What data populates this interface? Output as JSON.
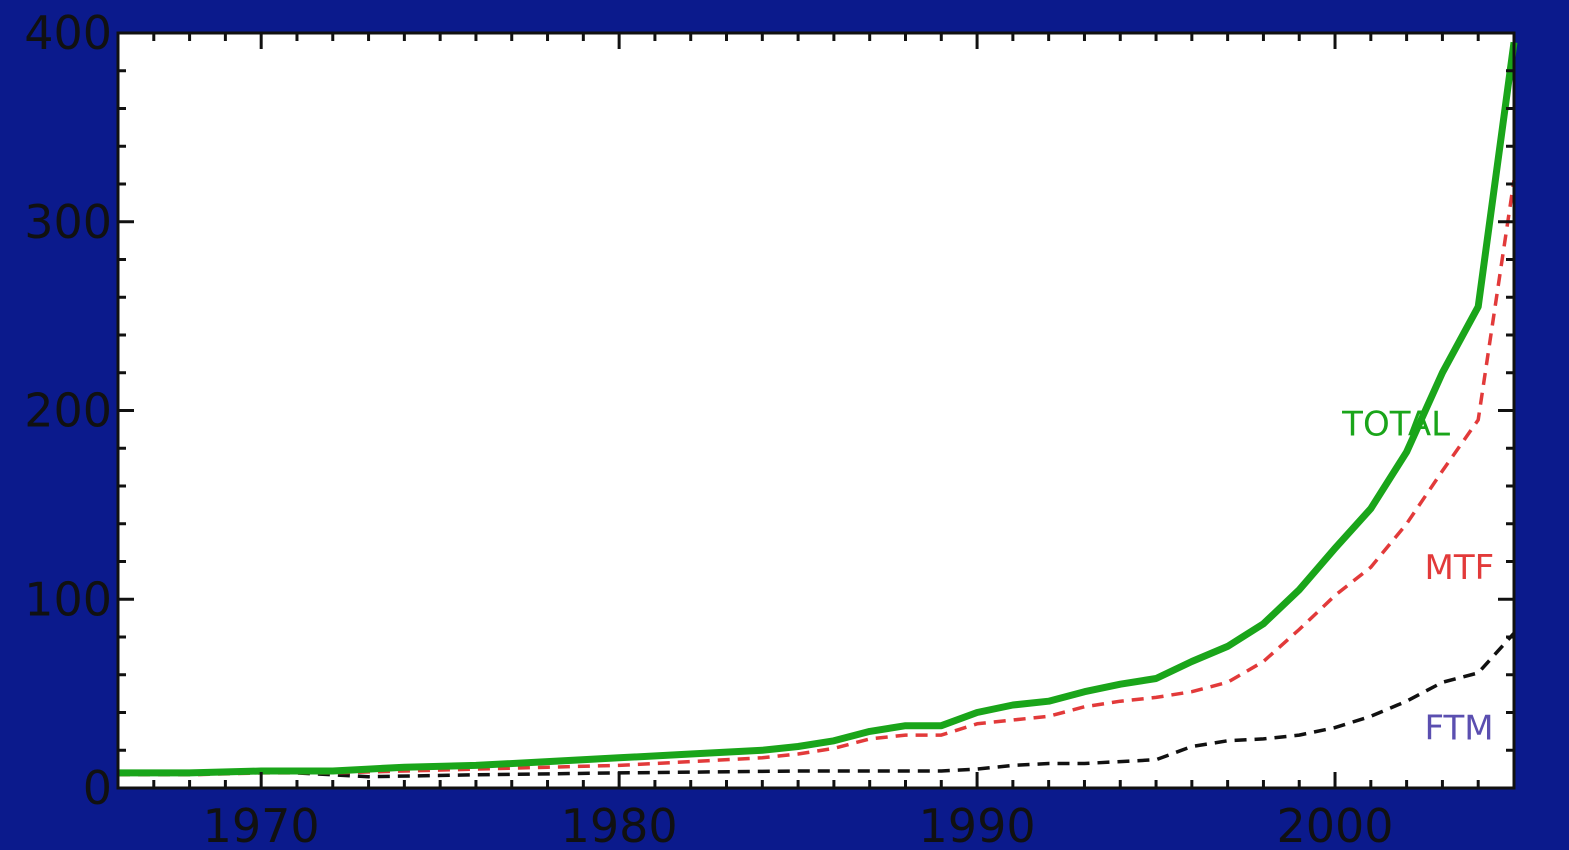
{
  "colors": {
    "background": "#0b1a8c",
    "plot_background": "#ffffff",
    "axis": "#111111"
  },
  "chart_data": {
    "type": "line",
    "title": "",
    "xlabel": "",
    "ylabel": "",
    "xlim": [
      1966,
      2005
    ],
    "ylim": [
      0,
      400
    ],
    "grid": false,
    "x_ticks": [
      1970,
      1980,
      1990,
      2000
    ],
    "x_tick_labels": [
      "1970",
      "1980",
      "1990",
      "2000"
    ],
    "y_ticks": [
      0,
      100,
      200,
      300,
      400
    ],
    "y_tick_labels": [
      "0",
      "100",
      "200",
      "300",
      "400"
    ],
    "series": [
      {
        "name": "TOTAL",
        "color": "#1aa51a",
        "style": "solid",
        "x": [
          1966,
          1968,
          1970,
          1972,
          1973,
          1974,
          1976,
          1978,
          1980,
          1982,
          1984,
          1985,
          1986,
          1987,
          1988,
          1989,
          1990,
          1991,
          1992,
          1993,
          1994,
          1995,
          1996,
          1997,
          1998,
          1999,
          2000,
          2001,
          2002,
          2003,
          2004,
          2005
        ],
        "values": [
          8,
          8,
          9,
          9,
          10,
          11,
          12,
          14,
          16,
          18,
          20,
          22,
          25,
          30,
          33,
          33,
          40,
          44,
          46,
          51,
          55,
          58,
          67,
          75,
          87,
          105,
          127,
          148,
          178,
          220,
          255,
          395
        ]
      },
      {
        "name": "MTF",
        "color": "#e23a3a",
        "style": "dashed",
        "x": [
          1966,
          1968,
          1970,
          1972,
          1974,
          1976,
          1978,
          1980,
          1982,
          1984,
          1985,
          1986,
          1987,
          1988,
          1989,
          1990,
          1991,
          1992,
          1993,
          1994,
          1995,
          1996,
          1997,
          1998,
          1999,
          2000,
          2001,
          2002,
          2003,
          2004,
          2005
        ],
        "values": [
          7,
          7,
          8,
          8,
          9,
          10,
          11,
          12,
          14,
          16,
          18,
          21,
          26,
          28,
          28,
          34,
          36,
          38,
          43,
          46,
          48,
          51,
          56,
          67,
          84,
          102,
          117,
          140,
          168,
          195,
          322
        ]
      },
      {
        "name": "FTM",
        "color": "#111111",
        "style": "dashed",
        "x": [
          1966,
          1970,
          1973,
          1976,
          1980,
          1985,
          1989,
          1990,
          1991,
          1992,
          1993,
          1994,
          1995,
          1996,
          1997,
          1998,
          1999,
          2000,
          2001,
          2002,
          2003,
          2004,
          2005
        ],
        "values": [
          8,
          9,
          6,
          7,
          8,
          9,
          9,
          10,
          12,
          13,
          13,
          14,
          15,
          22,
          25,
          26,
          28,
          32,
          38,
          46,
          56,
          61,
          82
        ]
      }
    ],
    "annotations": [
      {
        "text": "TOTAL",
        "x": 2000.2,
        "y": 193,
        "color": "#1aa51a"
      },
      {
        "text": "MTF",
        "x": 2002.5,
        "y": 117,
        "color": "#e23a3a"
      },
      {
        "text": "FTM",
        "x": 2002.5,
        "y": 32,
        "color": "#5b4fb0"
      }
    ]
  }
}
